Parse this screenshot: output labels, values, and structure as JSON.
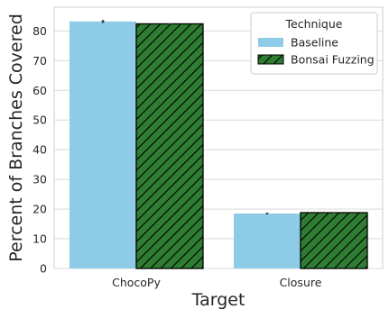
{
  "chart_data": {
    "type": "bar",
    "title": "",
    "xlabel": "Target",
    "ylabel": "Percent of Branches Covered",
    "categories": [
      "ChocoPy",
      "Closure"
    ],
    "series": [
      {
        "name": "Baseline",
        "values": [
          83.2,
          18.5
        ],
        "error": [
          0.5,
          0.3
        ],
        "color": "#8ecbe6",
        "hatch": false
      },
      {
        "name": "Bonsai Fuzzing",
        "values": [
          82.4,
          18.8
        ],
        "error": [
          0.2,
          0.2
        ],
        "color": "#2e7d32",
        "hatch": true
      }
    ],
    "ylim": [
      0,
      88
    ],
    "yticks": [
      0,
      10,
      20,
      30,
      40,
      50,
      60,
      70,
      80
    ],
    "grid": true,
    "legend": {
      "title": "Technique",
      "position": "top-right"
    }
  }
}
